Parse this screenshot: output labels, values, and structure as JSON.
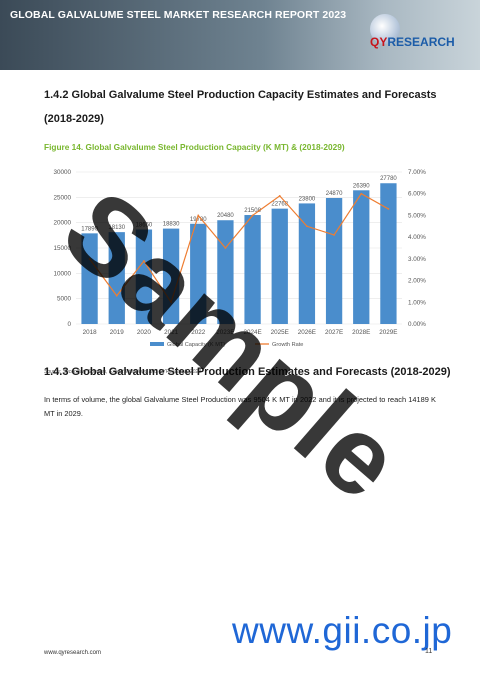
{
  "header": {
    "title": "GLOBAL GALVALUME STEEL MARKET RESEARCH REPORT 2023"
  },
  "logo": {
    "text_q": "QY",
    "text_rest": "RESEARCH"
  },
  "section_142": {
    "title_line1": "1.4.2  Global Galvalume Steel Production Capacity Estimates and Forecasts",
    "title_line2": "(2018-2029)"
  },
  "figure": {
    "title": "Figure 14.   Global Galvalume Steel Production Capacity (K MT) & (2018-2029)"
  },
  "chart_data": {
    "type": "bar",
    "categories": [
      "2018",
      "2019",
      "2020",
      "2021",
      "2022",
      "2023E",
      "2024E",
      "2025E",
      "2026E",
      "2027E",
      "2028E",
      "2029E"
    ],
    "series": [
      {
        "name": "Global Capacity (K MT)",
        "type": "bar",
        "axis": "left",
        "values": [
          17890,
          18130,
          18650,
          18830,
          19780,
          20480,
          21508,
          22768,
          23800,
          24870,
          26390,
          27780
        ]
      },
      {
        "name": "Growth Rate",
        "type": "line",
        "axis": "right",
        "values": [
          3.0,
          1.3,
          2.9,
          1.0,
          5.0,
          3.5,
          5.0,
          5.9,
          4.5,
          4.1,
          6.0,
          5.3
        ]
      }
    ],
    "bar_labels": [
      "17890",
      "18130",
      "18650",
      "18830",
      "19780",
      "20480",
      "21508",
      "22768",
      "23800",
      "24870",
      "26390",
      "27780"
    ],
    "y_left": {
      "min": 0,
      "max": 30000,
      "ticks": [
        "0",
        "5000",
        "10000",
        "15000",
        "20000",
        "25000",
        "30000"
      ]
    },
    "y_right": {
      "min": 0,
      "max": 7,
      "ticks": [
        "0.00%",
        "1.00%",
        "2.00%",
        "3.00%",
        "4.00%",
        "5.00%",
        "6.00%",
        "7.00%"
      ]
    },
    "legend_placement": "bottom",
    "colors": {
      "bar": "#4a8dcc",
      "line": "#ee7d31"
    }
  },
  "source": "Source: Secondary Sources, Expert Interviews and QYResearch, 2023",
  "section_143": {
    "title": "1.4.3  Global Galvalume Steel Production Estimates and Forecasts (2018-2029)"
  },
  "body": {
    "paragraph": "In terms of volume, the global Galvalume Steel Production was 9504 K MT in 2022 and it is projected to reach 14189 K MT in 2029."
  },
  "watermark": "Sample",
  "gii": "www.gii.co.jp",
  "footer": {
    "url": "www.qyresearch.com",
    "page": "11"
  }
}
